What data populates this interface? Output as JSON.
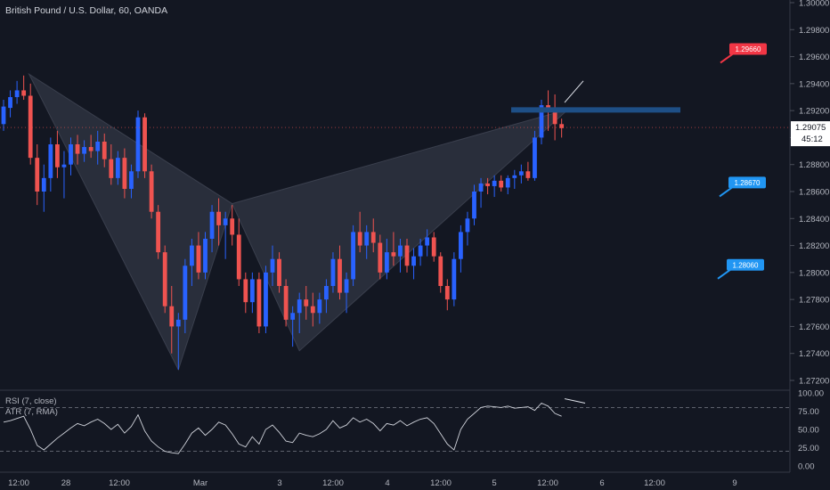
{
  "symbol_title": "British Pound / U.S. Dollar, 60, OANDA",
  "colors": {
    "background": "#131722",
    "up": "#2962ff",
    "down": "#ef5350",
    "text": "#b2b5be",
    "price_tag": "#ffffff",
    "rsi_line": "#cfd2da",
    "pattern_fill": "#2e3240",
    "resistance": "#1e4f86",
    "red_label": "#f23645",
    "blue_label": "#2196f3"
  },
  "chart_data": {
    "type": "candlestick",
    "price_axis": {
      "ticks": [
        "1.30000",
        "1.29800",
        "1.29600",
        "1.29400",
        "1.29200",
        "1.29000",
        "1.28800",
        "1.28600",
        "1.28400",
        "1.28200",
        "1.28000",
        "1.27800",
        "1.27600",
        "1.27400",
        "1.27200"
      ],
      "range": [
        1.2716,
        1.3003
      ]
    },
    "time_axis": {
      "ticks": [
        "12:00",
        "28",
        "12:00",
        "Mar",
        "3",
        "12:00",
        "4",
        "12:00",
        "5",
        "12:00",
        "6",
        "12:00",
        "9"
      ]
    },
    "last_price": {
      "value": "1.29075",
      "countdown": "45:12"
    },
    "candles": [
      [
        1.291,
        1.2928,
        1.2905,
        1.2923
      ],
      [
        1.2922,
        1.2935,
        1.2915,
        1.293
      ],
      [
        1.293,
        1.2942,
        1.2925,
        1.2935
      ],
      [
        1.2935,
        1.2946,
        1.2928,
        1.2931
      ],
      [
        1.2931,
        1.294,
        1.288,
        1.2885
      ],
      [
        1.2885,
        1.2895,
        1.285,
        1.286
      ],
      [
        1.286,
        1.288,
        1.2845,
        1.287
      ],
      [
        1.287,
        1.29,
        1.286,
        1.2895
      ],
      [
        1.2895,
        1.2905,
        1.287,
        1.2878
      ],
      [
        1.2878,
        1.289,
        1.2855,
        1.288
      ],
      [
        1.288,
        1.29,
        1.2872,
        1.2895
      ],
      [
        1.2895,
        1.2902,
        1.288,
        1.2888
      ],
      [
        1.2888,
        1.2898,
        1.2882,
        1.2893
      ],
      [
        1.2893,
        1.2902,
        1.2885,
        1.289
      ],
      [
        1.289,
        1.2905,
        1.288,
        1.2897
      ],
      [
        1.2897,
        1.2903,
        1.2878,
        1.2884
      ],
      [
        1.2884,
        1.2895,
        1.2865,
        1.287
      ],
      [
        1.287,
        1.289,
        1.2865,
        1.2885
      ],
      [
        1.2885,
        1.2892,
        1.2855,
        1.2862
      ],
      [
        1.2862,
        1.288,
        1.2855,
        1.2875
      ],
      [
        1.2875,
        1.292,
        1.287,
        1.2915
      ],
      [
        1.2915,
        1.2918,
        1.287,
        1.2875
      ],
      [
        1.2875,
        1.288,
        1.284,
        1.2845
      ],
      [
        1.2845,
        1.285,
        1.281,
        1.2815
      ],
      [
        1.2815,
        1.282,
        1.277,
        1.2775
      ],
      [
        1.2775,
        1.279,
        1.274,
        1.276
      ],
      [
        1.276,
        1.277,
        1.2728,
        1.2765
      ],
      [
        1.2765,
        1.281,
        1.2755,
        1.2805
      ],
      [
        1.2805,
        1.2825,
        1.279,
        1.282
      ],
      [
        1.282,
        1.283,
        1.2795,
        1.28
      ],
      [
        1.28,
        1.283,
        1.2795,
        1.2825
      ],
      [
        1.2825,
        1.285,
        1.2815,
        1.2845
      ],
      [
        1.2845,
        1.2855,
        1.282,
        1.2835
      ],
      [
        1.2835,
        1.2845,
        1.281,
        1.284
      ],
      [
        1.284,
        1.285,
        1.282,
        1.2828
      ],
      [
        1.2828,
        1.284,
        1.279,
        1.2795
      ],
      [
        1.2795,
        1.28,
        1.277,
        1.2778
      ],
      [
        1.2778,
        1.28,
        1.277,
        1.2795
      ],
      [
        1.2795,
        1.28,
        1.2755,
        1.276
      ],
      [
        1.276,
        1.2805,
        1.2755,
        1.28
      ],
      [
        1.28,
        1.282,
        1.279,
        1.281
      ],
      [
        1.281,
        1.2815,
        1.2785,
        1.279
      ],
      [
        1.279,
        1.2795,
        1.276,
        1.2765
      ],
      [
        1.2765,
        1.2775,
        1.2745,
        1.277
      ],
      [
        1.277,
        1.2785,
        1.2755,
        1.278
      ],
      [
        1.278,
        1.279,
        1.2765,
        1.2775
      ],
      [
        1.2775,
        1.2785,
        1.276,
        1.277
      ],
      [
        1.277,
        1.2785,
        1.2762,
        1.278
      ],
      [
        1.278,
        1.2795,
        1.277,
        1.279
      ],
      [
        1.279,
        1.2815,
        1.2785,
        1.281
      ],
      [
        1.281,
        1.282,
        1.278,
        1.2785
      ],
      [
        1.2785,
        1.28,
        1.277,
        1.2795
      ],
      [
        1.2795,
        1.2835,
        1.279,
        1.283
      ],
      [
        1.283,
        1.2845,
        1.2815,
        1.282
      ],
      [
        1.282,
        1.2835,
        1.281,
        1.283
      ],
      [
        1.283,
        1.284,
        1.2815,
        1.2822
      ],
      [
        1.2822,
        1.2828,
        1.2795,
        1.28
      ],
      [
        1.28,
        1.2825,
        1.2795,
        1.2815
      ],
      [
        1.2815,
        1.283,
        1.2805,
        1.2812
      ],
      [
        1.2812,
        1.2825,
        1.28,
        1.282
      ],
      [
        1.282,
        1.2825,
        1.28,
        1.2805
      ],
      [
        1.2805,
        1.2818,
        1.2795,
        1.2812
      ],
      [
        1.2812,
        1.2825,
        1.2805,
        1.282
      ],
      [
        1.282,
        1.2832,
        1.2812,
        1.2826
      ],
      [
        1.2826,
        1.283,
        1.2808,
        1.2812
      ],
      [
        1.2812,
        1.2815,
        1.2785,
        1.279
      ],
      [
        1.279,
        1.2795,
        1.2772,
        1.278
      ],
      [
        1.278,
        1.2815,
        1.2775,
        1.281
      ],
      [
        1.281,
        1.2835,
        1.28,
        1.283
      ],
      [
        1.283,
        1.2845,
        1.282,
        1.284
      ],
      [
        1.284,
        1.2865,
        1.2835,
        1.286
      ],
      [
        1.286,
        1.287,
        1.2848,
        1.2866
      ],
      [
        1.2866,
        1.287,
        1.2858,
        1.2864
      ],
      [
        1.2864,
        1.2872,
        1.2856,
        1.2868
      ],
      [
        1.2868,
        1.2872,
        1.286,
        1.2863
      ],
      [
        1.2863,
        1.2872,
        1.2858,
        1.287
      ],
      [
        1.287,
        1.2876,
        1.2862,
        1.2872
      ],
      [
        1.2872,
        1.288,
        1.2866,
        1.2875
      ],
      [
        1.2875,
        1.2882,
        1.2868,
        1.287
      ],
      [
        1.287,
        1.2905,
        1.2868,
        1.29
      ],
      [
        1.29,
        1.2928,
        1.2895,
        1.2924
      ],
      [
        1.2924,
        1.2935,
        1.2905,
        1.292
      ],
      [
        1.292,
        1.2932,
        1.2898,
        1.291
      ],
      [
        1.291,
        1.2914,
        1.29,
        1.2907
      ]
    ],
    "rsi": {
      "label": "RSI (7, close)",
      "atr_label": "ATR (7, RMA)",
      "ticks": [
        "100.00",
        "75.00",
        "50.00",
        "25.00",
        "0.00"
      ],
      "levels": [
        80,
        20
      ],
      "values": [
        60,
        62,
        65,
        68,
        50,
        28,
        22,
        30,
        38,
        45,
        52,
        58,
        55,
        60,
        64,
        58,
        50,
        57,
        45,
        54,
        70,
        48,
        34,
        26,
        20,
        18,
        17,
        30,
        45,
        52,
        42,
        50,
        60,
        56,
        44,
        30,
        26,
        40,
        30,
        50,
        56,
        46,
        34,
        32,
        45,
        42,
        40,
        44,
        50,
        62,
        52,
        56,
        66,
        60,
        64,
        58,
        48,
        58,
        56,
        62,
        55,
        60,
        64,
        66,
        58,
        44,
        30,
        22,
        50,
        64,
        72,
        80,
        82,
        81,
        80,
        82,
        79,
        80,
        81,
        76,
        86,
        82,
        72,
        68
      ]
    },
    "annotations": {
      "labels": [
        "1.29660",
        "1.28670",
        "1.28060"
      ]
    }
  }
}
